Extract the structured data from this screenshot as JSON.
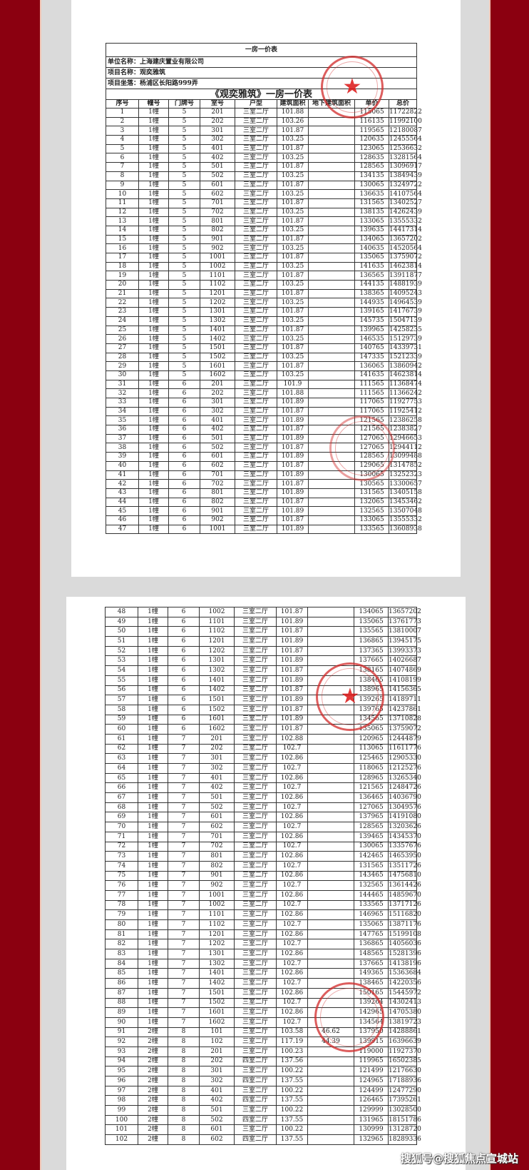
{
  "document": {
    "title": "一房一价表",
    "company_label": "单位名称：上海建庆置业有限公司",
    "project_label": "项目名称：观奕雅筑",
    "location_label": "项目坐落：杨浦区长阳路999弄",
    "table_title": "《观奕雅筑》一房一价表",
    "columns": [
      "序号",
      "幢号",
      "门牌号",
      "室号",
      "户型",
      "建筑面积",
      "地下建筑面积",
      "单价",
      "总价"
    ]
  },
  "page1": {
    "rows": [
      [
        "1",
        "1幢",
        "5",
        "201",
        "三室二厅",
        "101.88",
        "",
        "115065",
        "11722822"
      ],
      [
        "2",
        "1幢",
        "5",
        "202",
        "三室二厅",
        "103.26",
        "",
        "116135",
        "11992100"
      ],
      [
        "3",
        "1幢",
        "5",
        "301",
        "三室二厅",
        "101.87",
        "",
        "119565",
        "12180087"
      ],
      [
        "4",
        "1幢",
        "5",
        "302",
        "三室二厅",
        "103.25",
        "",
        "120635",
        "12455564"
      ],
      [
        "5",
        "1幢",
        "5",
        "401",
        "三室二厅",
        "101.87",
        "",
        "123065",
        "12536632"
      ],
      [
        "6",
        "1幢",
        "5",
        "402",
        "三室二厅",
        "103.25",
        "",
        "128635",
        "13281564"
      ],
      [
        "7",
        "1幢",
        "5",
        "501",
        "三室二厅",
        "101.87",
        "",
        "128565",
        "13096917"
      ],
      [
        "8",
        "1幢",
        "5",
        "502",
        "三室二厅",
        "103.25",
        "",
        "134135",
        "13849439"
      ],
      [
        "9",
        "1幢",
        "5",
        "601",
        "三室二厅",
        "101.87",
        "",
        "130065",
        "13249722"
      ],
      [
        "10",
        "1幢",
        "5",
        "602",
        "三室二厅",
        "103.25",
        "",
        "136635",
        "14107564"
      ],
      [
        "11",
        "1幢",
        "5",
        "701",
        "三室二厅",
        "101.87",
        "",
        "131565",
        "13402527"
      ],
      [
        "12",
        "1幢",
        "5",
        "702",
        "三室二厅",
        "103.25",
        "",
        "138135",
        "14262439"
      ],
      [
        "13",
        "1幢",
        "5",
        "801",
        "三室二厅",
        "101.87",
        "",
        "133065",
        "13555332"
      ],
      [
        "14",
        "1幢",
        "5",
        "802",
        "三室二厅",
        "103.25",
        "",
        "139635",
        "14417314"
      ],
      [
        "15",
        "1幢",
        "5",
        "901",
        "三室二厅",
        "101.87",
        "",
        "134065",
        "13657202"
      ],
      [
        "16",
        "1幢",
        "5",
        "902",
        "三室二厅",
        "103.25",
        "",
        "140635",
        "14520564"
      ],
      [
        "17",
        "1幢",
        "5",
        "1001",
        "三室二厅",
        "101.87",
        "",
        "135065",
        "13759072"
      ],
      [
        "18",
        "1幢",
        "5",
        "1002",
        "三室二厅",
        "103.25",
        "",
        "141635",
        "14623814"
      ],
      [
        "19",
        "1幢",
        "5",
        "1101",
        "三室二厅",
        "101.87",
        "",
        "136565",
        "13911877"
      ],
      [
        "20",
        "1幢",
        "5",
        "1102",
        "三室二厅",
        "103.25",
        "",
        "144135",
        "14881939"
      ],
      [
        "21",
        "1幢",
        "5",
        "1201",
        "三室二厅",
        "101.87",
        "",
        "138365",
        "14095243"
      ],
      [
        "22",
        "1幢",
        "5",
        "1202",
        "三室二厅",
        "103.25",
        "",
        "144935",
        "14964539"
      ],
      [
        "23",
        "1幢",
        "5",
        "1301",
        "三室二厅",
        "101.87",
        "",
        "139165",
        "14176739"
      ],
      [
        "24",
        "1幢",
        "5",
        "1302",
        "三室二厅",
        "103.25",
        "",
        "145735",
        "15047139"
      ],
      [
        "25",
        "1幢",
        "5",
        "1401",
        "三室二厅",
        "101.87",
        "",
        "139965",
        "14258235"
      ],
      [
        "26",
        "1幢",
        "5",
        "1402",
        "三室二厅",
        "103.25",
        "",
        "146535",
        "15129739"
      ],
      [
        "27",
        "1幢",
        "5",
        "1501",
        "三室二厅",
        "101.87",
        "",
        "140765",
        "14339731"
      ],
      [
        "28",
        "1幢",
        "5",
        "1502",
        "三室二厅",
        "103.25",
        "",
        "147335",
        "15212339"
      ],
      [
        "29",
        "1幢",
        "5",
        "1601",
        "三室二厅",
        "101.87",
        "",
        "136065",
        "13860942"
      ],
      [
        "30",
        "1幢",
        "5",
        "1602",
        "三室二厅",
        "103.25",
        "",
        "141635",
        "14623814"
      ],
      [
        "31",
        "1幢",
        "6",
        "201",
        "三室二厅",
        "101.9",
        "",
        "111565",
        "11368474"
      ],
      [
        "32",
        "1幢",
        "6",
        "202",
        "三室二厅",
        "101.88",
        "",
        "111565",
        "11366242"
      ],
      [
        "33",
        "1幢",
        "6",
        "301",
        "三室二厅",
        "101.89",
        "",
        "117065",
        "11927753"
      ],
      [
        "34",
        "1幢",
        "6",
        "302",
        "三室二厅",
        "101.87",
        "",
        "117065",
        "11925412"
      ],
      [
        "35",
        "1幢",
        "6",
        "401",
        "三室二厅",
        "101.89",
        "",
        "121565",
        "12386258"
      ],
      [
        "36",
        "1幢",
        "6",
        "402",
        "三室二厅",
        "101.87",
        "",
        "121565",
        "12383827"
      ],
      [
        "37",
        "1幢",
        "6",
        "501",
        "三室二厅",
        "101.89",
        "",
        "127065",
        "12946653"
      ],
      [
        "38",
        "1幢",
        "6",
        "502",
        "三室二厅",
        "101.87",
        "",
        "127065",
        "12944112"
      ],
      [
        "39",
        "1幢",
        "6",
        "601",
        "三室二厅",
        "101.89",
        "",
        "128565",
        "13099488"
      ],
      [
        "40",
        "1幢",
        "6",
        "602",
        "三室二厅",
        "101.87",
        "",
        "129065",
        "13147852"
      ],
      [
        "41",
        "1幢",
        "6",
        "701",
        "三室二厅",
        "101.89",
        "",
        "130065",
        "13252323"
      ],
      [
        "42",
        "1幢",
        "6",
        "702",
        "三室二厅",
        "101.87",
        "",
        "130565",
        "13300657"
      ],
      [
        "43",
        "1幢",
        "6",
        "801",
        "三室二厅",
        "101.89",
        "",
        "131565",
        "13405158"
      ],
      [
        "44",
        "1幢",
        "6",
        "802",
        "三室二厅",
        "101.87",
        "",
        "132065",
        "13453462"
      ],
      [
        "45",
        "1幢",
        "6",
        "901",
        "三室二厅",
        "101.89",
        "",
        "132565",
        "13507048"
      ],
      [
        "46",
        "1幢",
        "6",
        "902",
        "三室二厅",
        "101.87",
        "",
        "133065",
        "13555332"
      ],
      [
        "47",
        "1幢",
        "6",
        "1001",
        "三室二厅",
        "101.89",
        "",
        "133565",
        "13608938"
      ]
    ]
  },
  "page2": {
    "rows": [
      [
        "48",
        "1幢",
        "6",
        "1002",
        "三室二厅",
        "101.87",
        "",
        "134065",
        "13657202"
      ],
      [
        "49",
        "1幢",
        "6",
        "1101",
        "三室二厅",
        "101.89",
        "",
        "135065",
        "13761773"
      ],
      [
        "50",
        "1幢",
        "6",
        "1102",
        "三室二厅",
        "101.87",
        "",
        "135565",
        "13810007"
      ],
      [
        "51",
        "1幢",
        "6",
        "1201",
        "三室二厅",
        "101.89",
        "",
        "136865",
        "13945175"
      ],
      [
        "52",
        "1幢",
        "6",
        "1202",
        "三室二厅",
        "101.87",
        "",
        "137365",
        "13993373"
      ],
      [
        "53",
        "1幢",
        "6",
        "1301",
        "三室二厅",
        "101.89",
        "",
        "137665",
        "14026687"
      ],
      [
        "54",
        "1幢",
        "6",
        "1302",
        "三室二厅",
        "101.87",
        "",
        "138165",
        "14074869"
      ],
      [
        "55",
        "1幢",
        "6",
        "1401",
        "三室二厅",
        "101.89",
        "",
        "138465",
        "14108199"
      ],
      [
        "56",
        "1幢",
        "6",
        "1402",
        "三室二厅",
        "101.87",
        "",
        "138965",
        "14156365"
      ],
      [
        "57",
        "1幢",
        "6",
        "1501",
        "三室二厅",
        "101.89",
        "",
        "139265",
        "14189711"
      ],
      [
        "58",
        "1幢",
        "6",
        "1502",
        "三室二厅",
        "101.87",
        "",
        "139765",
        "14237861"
      ],
      [
        "59",
        "1幢",
        "6",
        "1601",
        "三室二厅",
        "101.89",
        "",
        "134565",
        "13710828"
      ],
      [
        "60",
        "1幢",
        "6",
        "1602",
        "三室二厅",
        "101.87",
        "",
        "135065",
        "13759072"
      ],
      [
        "61",
        "1幢",
        "7",
        "201",
        "三室二厅",
        "102.88",
        "",
        "120965",
        "12444879"
      ],
      [
        "62",
        "1幢",
        "7",
        "202",
        "三室二厅",
        "102.7",
        "",
        "113065",
        "11611776"
      ],
      [
        "63",
        "1幢",
        "7",
        "301",
        "三室二厅",
        "102.86",
        "",
        "125465",
        "12905330"
      ],
      [
        "64",
        "1幢",
        "7",
        "302",
        "三室二厅",
        "102.7",
        "",
        "118065",
        "12125276"
      ],
      [
        "65",
        "1幢",
        "7",
        "401",
        "三室二厅",
        "102.86",
        "",
        "128965",
        "13265340"
      ],
      [
        "66",
        "1幢",
        "7",
        "402",
        "三室二厅",
        "102.7",
        "",
        "121565",
        "12484726"
      ],
      [
        "67",
        "1幢",
        "7",
        "501",
        "三室二厅",
        "102.86",
        "",
        "136465",
        "14036790"
      ],
      [
        "68",
        "1幢",
        "7",
        "502",
        "三室二厅",
        "102.7",
        "",
        "127065",
        "13049576"
      ],
      [
        "69",
        "1幢",
        "7",
        "601",
        "三室二厅",
        "102.86",
        "",
        "137965",
        "14191080"
      ],
      [
        "70",
        "1幢",
        "7",
        "602",
        "三室二厅",
        "102.7",
        "",
        "128565",
        "13203626"
      ],
      [
        "71",
        "1幢",
        "7",
        "701",
        "三室二厅",
        "102.86",
        "",
        "139465",
        "14345370"
      ],
      [
        "72",
        "1幢",
        "7",
        "702",
        "三室二厅",
        "102.7",
        "",
        "130065",
        "13357676"
      ],
      [
        "73",
        "1幢",
        "7",
        "801",
        "三室二厅",
        "102.86",
        "",
        "142465",
        "14653950"
      ],
      [
        "74",
        "1幢",
        "7",
        "802",
        "三室二厅",
        "102.7",
        "",
        "131565",
        "13511726"
      ],
      [
        "75",
        "1幢",
        "7",
        "901",
        "三室二厅",
        "102.86",
        "",
        "143465",
        "14756810"
      ],
      [
        "76",
        "1幢",
        "7",
        "902",
        "三室二厅",
        "102.7",
        "",
        "132565",
        "13614426"
      ],
      [
        "77",
        "1幢",
        "7",
        "1001",
        "三室二厅",
        "102.86",
        "",
        "144465",
        "14859670"
      ],
      [
        "78",
        "1幢",
        "7",
        "1002",
        "三室二厅",
        "102.7",
        "",
        "133565",
        "13717126"
      ],
      [
        "79",
        "1幢",
        "7",
        "1101",
        "三室二厅",
        "102.86",
        "",
        "146965",
        "15116820"
      ],
      [
        "80",
        "1幢",
        "7",
        "1102",
        "三室二厅",
        "102.7",
        "",
        "135065",
        "13871176"
      ],
      [
        "81",
        "1幢",
        "7",
        "1201",
        "三室二厅",
        "102.86",
        "",
        "147765",
        "15199108"
      ],
      [
        "82",
        "1幢",
        "7",
        "1202",
        "三室二厅",
        "102.7",
        "",
        "136865",
        "14056036"
      ],
      [
        "83",
        "1幢",
        "7",
        "1301",
        "三室二厅",
        "102.86",
        "",
        "148565",
        "15281396"
      ],
      [
        "84",
        "1幢",
        "7",
        "1302",
        "三室二厅",
        "102.7",
        "",
        "137665",
        "14138196"
      ],
      [
        "85",
        "1幢",
        "7",
        "1401",
        "三室二厅",
        "102.86",
        "",
        "149365",
        "15363684"
      ],
      [
        "86",
        "1幢",
        "7",
        "1402",
        "三室二厅",
        "102.7",
        "",
        "138465",
        "14220356"
      ],
      [
        "87",
        "1幢",
        "7",
        "1501",
        "三室二厅",
        "102.86",
        "",
        "150165",
        "15445972"
      ],
      [
        "88",
        "1幢",
        "7",
        "1502",
        "三室二厅",
        "102.7",
        "",
        "139264",
        "14302413"
      ],
      [
        "89",
        "1幢",
        "7",
        "1601",
        "三室二厅",
        "102.86",
        "",
        "142965",
        "14705380"
      ],
      [
        "90",
        "1幢",
        "7",
        "1602",
        "三室二厅",
        "102.7",
        "",
        "134564",
        "13819723"
      ],
      [
        "91",
        "2幢",
        "8",
        "101",
        "三室二厅",
        "103.58",
        "46.62",
        "137950",
        "14288861"
      ],
      [
        "92",
        "2幢",
        "8",
        "102",
        "三室二厅",
        "117.19",
        "44.39",
        "139915",
        "16396639"
      ],
      [
        "93",
        "2幢",
        "8",
        "201",
        "三室二厅",
        "100.23",
        "",
        "119000",
        "11927370"
      ],
      [
        "94",
        "2幢",
        "8",
        "202",
        "四室二厅",
        "137.56",
        "",
        "119965",
        "16502385"
      ],
      [
        "95",
        "2幢",
        "8",
        "301",
        "三室二厅",
        "100.22",
        "",
        "121499",
        "12176630"
      ],
      [
        "96",
        "2幢",
        "8",
        "302",
        "四室二厅",
        "137.55",
        "",
        "124965",
        "17188936"
      ],
      [
        "97",
        "2幢",
        "8",
        "401",
        "三室二厅",
        "100.22",
        "",
        "124499",
        "12477290"
      ],
      [
        "98",
        "2幢",
        "8",
        "402",
        "四室二厅",
        "137.55",
        "",
        "126465",
        "17395261"
      ],
      [
        "99",
        "2幢",
        "8",
        "501",
        "三室二厅",
        "100.22",
        "",
        "129999",
        "13028500"
      ],
      [
        "100",
        "2幢",
        "8",
        "502",
        "四室二厅",
        "137.55",
        "",
        "131965",
        "18151786"
      ],
      [
        "101",
        "2幢",
        "8",
        "601",
        "三室二厅",
        "100.22",
        "",
        "130999",
        "13128720"
      ],
      [
        "102",
        "2幢",
        "8",
        "602",
        "四室二厅",
        "137.55",
        "",
        "132965",
        "18289336"
      ]
    ]
  },
  "watermark": "搜狐号@搜狐焦点宣城站",
  "colors": {
    "border_red": "#8b0010",
    "stamp_red": "#d22828",
    "backdrop_gray": "#dadada"
  }
}
